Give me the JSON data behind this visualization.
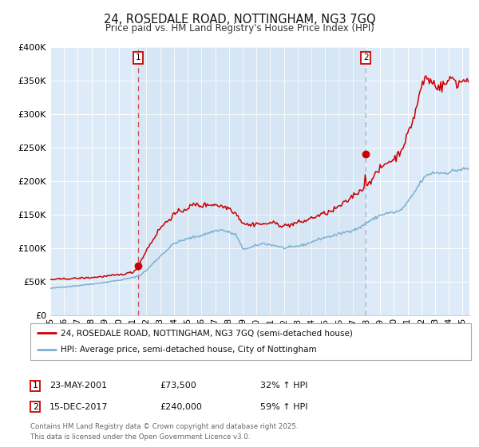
{
  "title": "24, ROSEDALE ROAD, NOTTINGHAM, NG3 7GQ",
  "subtitle": "Price paid vs. HM Land Registry's House Price Index (HPI)",
  "title_fontsize": 10.5,
  "subtitle_fontsize": 8.5,
  "background_color": "#ffffff",
  "plot_bg_color": "#ddeaf7",
  "grid_color": "#ffffff",
  "red_line_color": "#cc0000",
  "blue_line_color": "#7bafd4",
  "purchase1_date": 2001.39,
  "purchase1_price": 73500,
  "purchase2_date": 2017.96,
  "purchase2_price": 240000,
  "xmin": 1995,
  "xmax": 2025.5,
  "ymin": 0,
  "ymax": 400000,
  "yticks": [
    0,
    50000,
    100000,
    150000,
    200000,
    250000,
    300000,
    350000,
    400000
  ],
  "ytick_labels": [
    "£0",
    "£50K",
    "£100K",
    "£150K",
    "£200K",
    "£250K",
    "£300K",
    "£350K",
    "£400K"
  ],
  "legend_red": "24, ROSEDALE ROAD, NOTTINGHAM, NG3 7GQ (semi-detached house)",
  "legend_blue": "HPI: Average price, semi-detached house, City of Nottingham",
  "annotation1_date": "23-MAY-2001",
  "annotation1_price": "£73,500",
  "annotation1_hpi": "32% ↑ HPI",
  "annotation2_date": "15-DEC-2017",
  "annotation2_price": "£240,000",
  "annotation2_hpi": "59% ↑ HPI",
  "footer": "Contains HM Land Registry data © Crown copyright and database right 2025.\nThis data is licensed under the Open Government Licence v3.0.",
  "xtick_years": [
    1995,
    1996,
    1997,
    1998,
    1999,
    2000,
    2001,
    2002,
    2003,
    2004,
    2005,
    2006,
    2007,
    2008,
    2009,
    2010,
    2011,
    2012,
    2013,
    2014,
    2015,
    2016,
    2017,
    2018,
    2019,
    2020,
    2021,
    2022,
    2023,
    2024,
    2025
  ]
}
